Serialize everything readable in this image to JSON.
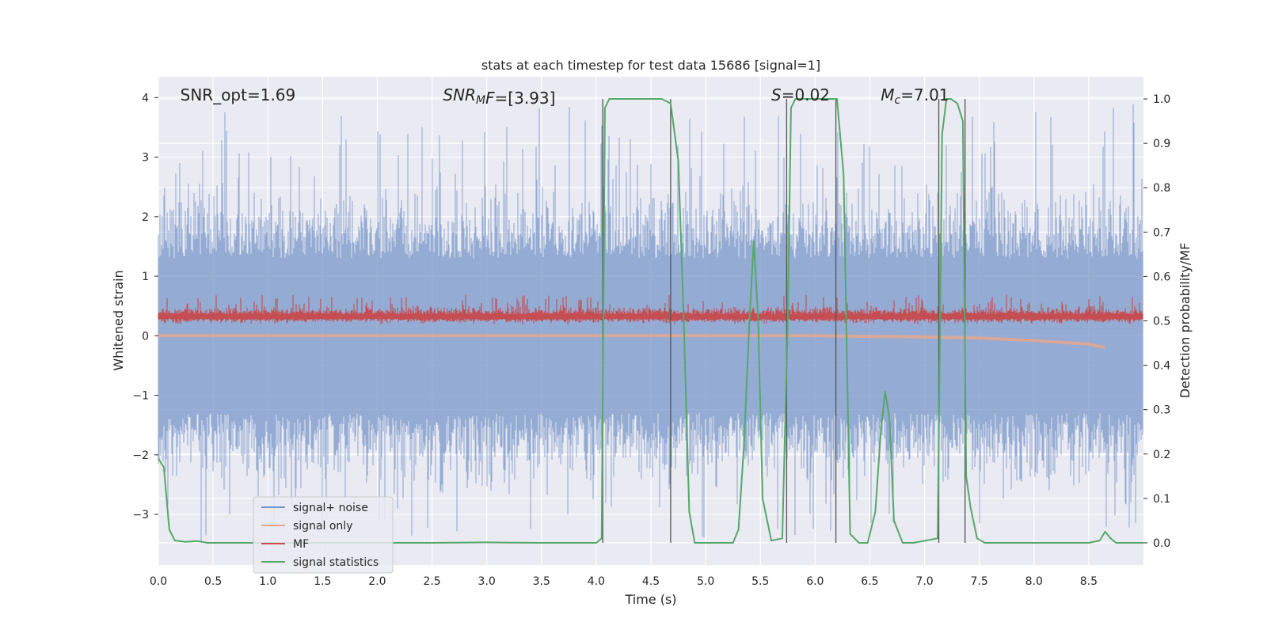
{
  "chart_data": {
    "type": "line",
    "title": "stats at each timestep for test data 15686 [signal=1]",
    "xlabel": "Time (s)",
    "ylabel_left": "Whitened strain",
    "ylabel_right": "Detection probability/MF",
    "xlim": [
      0.0,
      9.0
    ],
    "ylim_left": [
      -3.85,
      4.35
    ],
    "ylim_right": [
      -0.05,
      1.05
    ],
    "x_ticks": [
      "0.0",
      "0.5",
      "1.0",
      "1.5",
      "2.0",
      "2.5",
      "3.0",
      "3.5",
      "4.0",
      "4.5",
      "5.0",
      "5.5",
      "6.0",
      "6.5",
      "7.0",
      "7.5",
      "8.0",
      "8.5"
    ],
    "x_tick_values": [
      0.0,
      0.5,
      1.0,
      1.5,
      2.0,
      2.5,
      3.0,
      3.5,
      4.0,
      4.5,
      5.0,
      5.5,
      6.0,
      6.5,
      7.0,
      7.5,
      8.0,
      8.5
    ],
    "y_left_ticks": [
      "−3",
      "−2",
      "−1",
      "0",
      "1",
      "2",
      "3",
      "4"
    ],
    "y_left_tick_values": [
      -3,
      -2,
      -1,
      0,
      1,
      2,
      3,
      4
    ],
    "y_right_ticks": [
      "0.0",
      "0.1",
      "0.2",
      "0.3",
      "0.4",
      "0.5",
      "0.6",
      "0.7",
      "0.8",
      "0.9",
      "1.0"
    ],
    "y_right_tick_values": [
      0.0,
      0.1,
      0.2,
      0.3,
      0.4,
      0.5,
      0.6,
      0.7,
      0.8,
      0.9,
      1.0
    ],
    "grid": true,
    "legend_placement": "lower-left",
    "annotations": [
      {
        "text": "SNR_opt=1.69",
        "x": 0.2,
        "y": 3.95
      },
      {
        "text": "SNR_MF=[3.93]",
        "x": 2.6,
        "y": 3.95
      },
      {
        "text": "S=0.02",
        "x": 5.6,
        "y": 3.95
      },
      {
        "text": "M_c=7.01",
        "x": 6.6,
        "y": 3.95
      }
    ],
    "series": [
      {
        "name": "signal+ noise",
        "axis": "left",
        "color": "#7393c6",
        "style": "dense noise, approx. range −3.5 to 4.0"
      },
      {
        "name": "signal only",
        "axis": "left",
        "color": "#e8a68a",
        "x": [
          0.0,
          5.5,
          6.0,
          6.5,
          7.0,
          7.5,
          8.0,
          8.5,
          8.65
        ],
        "y": [
          0.0,
          0.0,
          0.0,
          -0.01,
          -0.02,
          -0.04,
          -0.08,
          -0.14,
          -0.2
        ]
      },
      {
        "name": "MF",
        "axis": "right",
        "color": "#c44e52",
        "style": "dense trace, approx. range 0.49 to 0.56"
      },
      {
        "name": "signal statistics",
        "axis": "right",
        "color": "#55a868",
        "x": [
          0.0,
          0.05,
          0.1,
          0.15,
          0.25,
          0.35,
          0.45,
          0.6,
          1.0,
          2.0,
          2.5,
          3.0,
          3.5,
          4.0,
          4.05,
          4.08,
          4.12,
          4.2,
          4.3,
          4.6,
          4.68,
          4.75,
          4.8,
          4.85,
          4.9,
          5.0,
          5.25,
          5.3,
          5.35,
          5.4,
          5.44,
          5.48,
          5.52,
          5.6,
          5.7,
          5.75,
          5.78,
          5.82,
          5.9,
          6.1,
          6.2,
          6.26,
          6.32,
          6.4,
          6.48,
          6.55,
          6.6,
          6.64,
          6.68,
          6.72,
          6.8,
          6.9,
          7.12,
          7.16,
          7.2,
          7.24,
          7.3,
          7.35,
          7.38,
          7.42,
          7.48,
          7.55,
          8.0,
          8.5,
          8.6,
          8.65,
          8.7,
          8.75,
          8.8,
          9.0
        ],
        "y": [
          0.19,
          0.17,
          0.03,
          0.005,
          0.002,
          0.004,
          0.0,
          0.0,
          0.0,
          0.0,
          0.0,
          0.001,
          0.0,
          0.0,
          0.01,
          0.98,
          1.0,
          1.0,
          1.0,
          1.0,
          0.99,
          0.86,
          0.5,
          0.07,
          0.0,
          0.0,
          0.0,
          0.03,
          0.22,
          0.5,
          0.68,
          0.5,
          0.1,
          0.005,
          0.01,
          0.5,
          0.98,
          1.0,
          1.0,
          1.0,
          1.0,
          0.83,
          0.02,
          0.0,
          0.0,
          0.07,
          0.25,
          0.34,
          0.28,
          0.05,
          0.0,
          0.0,
          0.01,
          0.92,
          1.0,
          1.0,
          0.99,
          0.95,
          0.15,
          0.08,
          0.01,
          0.0,
          0.0,
          0.0,
          0.005,
          0.025,
          0.01,
          0.0,
          0.0,
          0.0
        ]
      }
    ],
    "vertical_lines_x": [
      4.06,
      4.68,
      5.74,
      6.19,
      7.13,
      7.37
    ],
    "vertical_lines_range_right": [
      0.0,
      1.0
    ]
  }
}
